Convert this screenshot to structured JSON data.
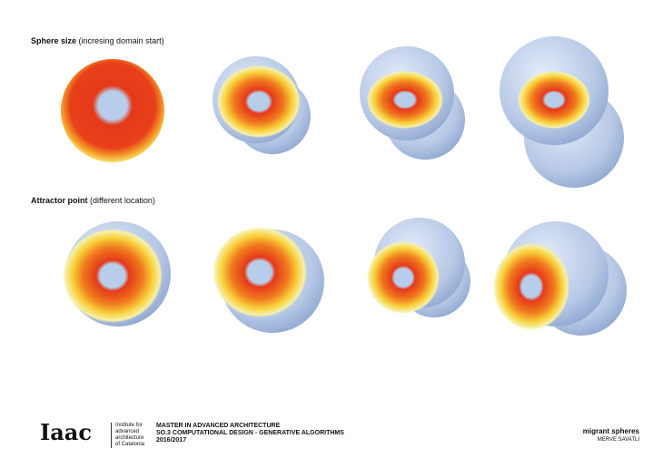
{
  "sections": [
    {
      "title": "Sphere size",
      "note": "(incresing domain start)"
    },
    {
      "title": "Attractor point",
      "note": "(different location)"
    }
  ],
  "footer": {
    "logo": "Iaac",
    "institute": [
      "Institute for",
      "advanced",
      "architecture",
      "of Catalonia"
    ],
    "course": [
      "MASTER IN ADVANCED ARCHITECTURE",
      "SO.3 COMPUTATIONAL DESIGN - GENERATIVE ALGORITHMS",
      "2016/2017"
    ],
    "project": "migrant spheres",
    "author": "MERVE SAVATLI"
  }
}
